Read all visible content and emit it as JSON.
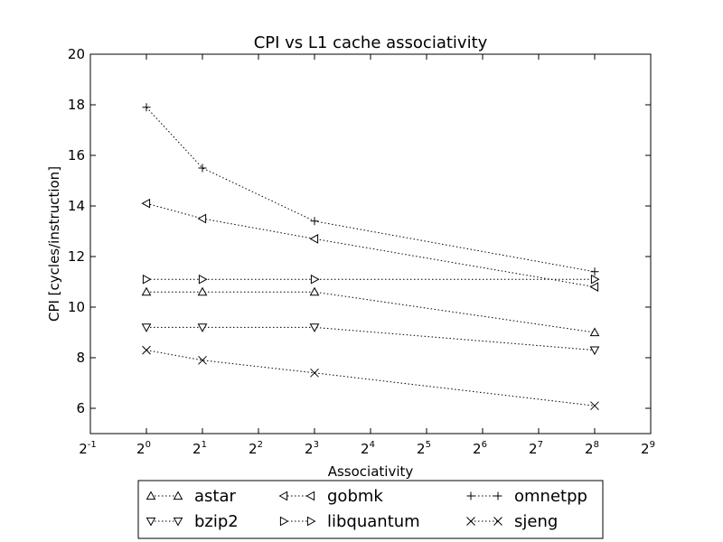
{
  "chart_data": {
    "type": "line",
    "title": "CPI vs L1 cache associativity",
    "xlabel": "Associativity",
    "ylabel": "CPI [cycles/instruction]",
    "x_scale": "log2",
    "x": [
      1,
      2,
      8,
      256
    ],
    "xlim": [
      0.5,
      512
    ],
    "xticks": [
      {
        "base": "2",
        "exp": "-1"
      },
      {
        "base": "2",
        "exp": "0"
      },
      {
        "base": "2",
        "exp": "1"
      },
      {
        "base": "2",
        "exp": "2"
      },
      {
        "base": "2",
        "exp": "3"
      },
      {
        "base": "2",
        "exp": "4"
      },
      {
        "base": "2",
        "exp": "5"
      },
      {
        "base": "2",
        "exp": "6"
      },
      {
        "base": "2",
        "exp": "7"
      },
      {
        "base": "2",
        "exp": "8"
      },
      {
        "base": "2",
        "exp": "9"
      }
    ],
    "ylim": [
      5,
      20
    ],
    "yticks": [
      "6",
      "8",
      "10",
      "12",
      "14",
      "16",
      "18",
      "20"
    ],
    "grid": false,
    "legend_position": "bottom (below axes)",
    "line_style": "dotted",
    "line_color": "#000000",
    "series": [
      {
        "name": "astar",
        "marker": "triangle-up",
        "values": [
          10.6,
          10.6,
          10.6,
          9.0
        ]
      },
      {
        "name": "bzip2",
        "marker": "triangle-down",
        "values": [
          9.2,
          9.2,
          9.2,
          8.3
        ]
      },
      {
        "name": "gobmk",
        "marker": "triangle-left",
        "values": [
          14.1,
          13.5,
          12.7,
          10.8
        ]
      },
      {
        "name": "libquantum",
        "marker": "triangle-right",
        "values": [
          11.1,
          11.1,
          11.1,
          11.1
        ]
      },
      {
        "name": "omnetpp",
        "marker": "plus",
        "values": [
          17.9,
          15.5,
          13.4,
          11.4
        ]
      },
      {
        "name": "sjeng",
        "marker": "x",
        "values": [
          8.3,
          7.9,
          7.4,
          6.1
        ]
      }
    ]
  }
}
